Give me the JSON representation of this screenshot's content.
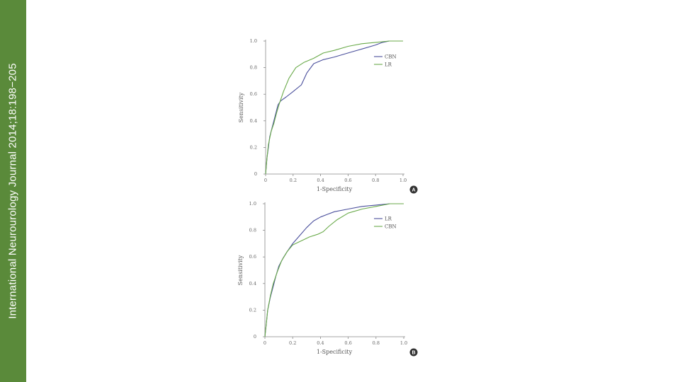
{
  "sidebar": {
    "text": "International Neurourology Journal 2014;18:198−205"
  },
  "colors": {
    "sidebar_bg": "#5a8a3a",
    "series_blue": "#4a4f9c",
    "series_green": "#6aaa4a"
  },
  "chart_data": [
    {
      "type": "line",
      "badge": "A",
      "xlabel": "1-Specificity",
      "ylabel": "Sensitivity",
      "xlim": [
        0,
        1
      ],
      "ylim": [
        0,
        1
      ],
      "xticks": [
        "0",
        "0.2",
        "0.4",
        "0.6",
        "0.8",
        "1.0"
      ],
      "yticks": [
        "0",
        "0.2",
        "0.4",
        "0.6",
        "0.8",
        "1.0"
      ],
      "legend_position": "right",
      "series": [
        {
          "name": "CBN",
          "color": "#4a4f9c",
          "x": [
            0,
            0.01,
            0.02,
            0.03,
            0.05,
            0.07,
            0.09,
            0.11,
            0.15,
            0.2,
            0.26,
            0.3,
            0.35,
            0.42,
            0.5,
            0.6,
            0.7,
            0.8,
            0.85,
            0.9,
            1.0
          ],
          "y": [
            0,
            0.12,
            0.2,
            0.28,
            0.36,
            0.44,
            0.52,
            0.55,
            0.58,
            0.62,
            0.67,
            0.76,
            0.83,
            0.86,
            0.88,
            0.91,
            0.94,
            0.97,
            0.99,
            1.0,
            1.0
          ]
        },
        {
          "name": "LR",
          "color": "#6aaa4a",
          "x": [
            0,
            0.01,
            0.02,
            0.04,
            0.06,
            0.08,
            0.1,
            0.13,
            0.17,
            0.22,
            0.28,
            0.35,
            0.42,
            0.5,
            0.6,
            0.7,
            0.8,
            0.9,
            1.0
          ],
          "y": [
            0,
            0.12,
            0.22,
            0.32,
            0.38,
            0.46,
            0.53,
            0.62,
            0.72,
            0.8,
            0.84,
            0.87,
            0.91,
            0.93,
            0.96,
            0.98,
            0.99,
            1.0,
            1.0
          ]
        }
      ]
    },
    {
      "type": "line",
      "badge": "B",
      "xlabel": "1-Specificity",
      "ylabel": "Sensitivity",
      "xlim": [
        0,
        1
      ],
      "ylim": [
        0,
        1
      ],
      "xticks": [
        "0",
        "0.2",
        "0.4",
        "0.6",
        "0.8",
        "1.0"
      ],
      "yticks": [
        "0",
        "0.2",
        "0.4",
        "0.6",
        "0.8",
        "1.0"
      ],
      "legend_position": "right",
      "series": [
        {
          "name": "LR",
          "color": "#4a4f9c",
          "x": [
            0,
            0.01,
            0.02,
            0.04,
            0.06,
            0.08,
            0.1,
            0.13,
            0.16,
            0.2,
            0.25,
            0.3,
            0.35,
            0.4,
            0.45,
            0.5,
            0.6,
            0.7,
            0.8,
            0.9,
            1.0
          ],
          "y": [
            0,
            0.1,
            0.2,
            0.3,
            0.38,
            0.46,
            0.53,
            0.59,
            0.64,
            0.7,
            0.76,
            0.82,
            0.87,
            0.9,
            0.92,
            0.94,
            0.96,
            0.98,
            0.99,
            1.0,
            1.0
          ]
        },
        {
          "name": "CBN",
          "color": "#6aaa4a",
          "x": [
            0,
            0.01,
            0.02,
            0.04,
            0.06,
            0.09,
            0.12,
            0.16,
            0.2,
            0.26,
            0.32,
            0.38,
            0.42,
            0.46,
            0.52,
            0.6,
            0.7,
            0.8,
            0.9,
            1.0
          ],
          "y": [
            0,
            0.1,
            0.2,
            0.31,
            0.4,
            0.49,
            0.57,
            0.64,
            0.69,
            0.72,
            0.75,
            0.77,
            0.79,
            0.83,
            0.88,
            0.93,
            0.96,
            0.98,
            1.0,
            1.0
          ]
        }
      ]
    }
  ]
}
